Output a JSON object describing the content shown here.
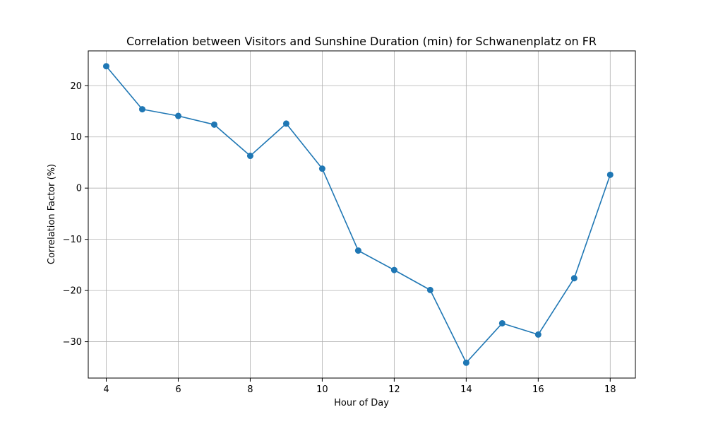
{
  "chart_data": {
    "type": "line",
    "title": "Correlation between Visitors and Sunshine Duration (min) for Schwanenplatz on FR",
    "xlabel": "Hour of Day",
    "ylabel": "Correlation Factor (%)",
    "x": [
      4,
      5,
      6,
      7,
      8,
      9,
      10,
      11,
      12,
      13,
      14,
      15,
      16,
      17,
      18
    ],
    "series": [
      {
        "values": [
          23.8,
          15.4,
          14.1,
          12.4,
          6.3,
          12.6,
          3.8,
          -12.2,
          -16.0,
          -19.9,
          -34.1,
          -26.4,
          -28.6,
          -17.6,
          2.6
        ],
        "color": "#1f77b4",
        "marker": "circle"
      }
    ],
    "xlim": [
      3.5,
      18.7
    ],
    "ylim": [
      -37.1,
      26.8
    ],
    "xticks": [
      4,
      6,
      8,
      10,
      12,
      14,
      16,
      18
    ],
    "yticks": [
      -30,
      -20,
      -10,
      0,
      10,
      20
    ],
    "ytick_labels": [
      "−30",
      "−20",
      "−10",
      "0",
      "10",
      "20"
    ],
    "grid": true
  }
}
